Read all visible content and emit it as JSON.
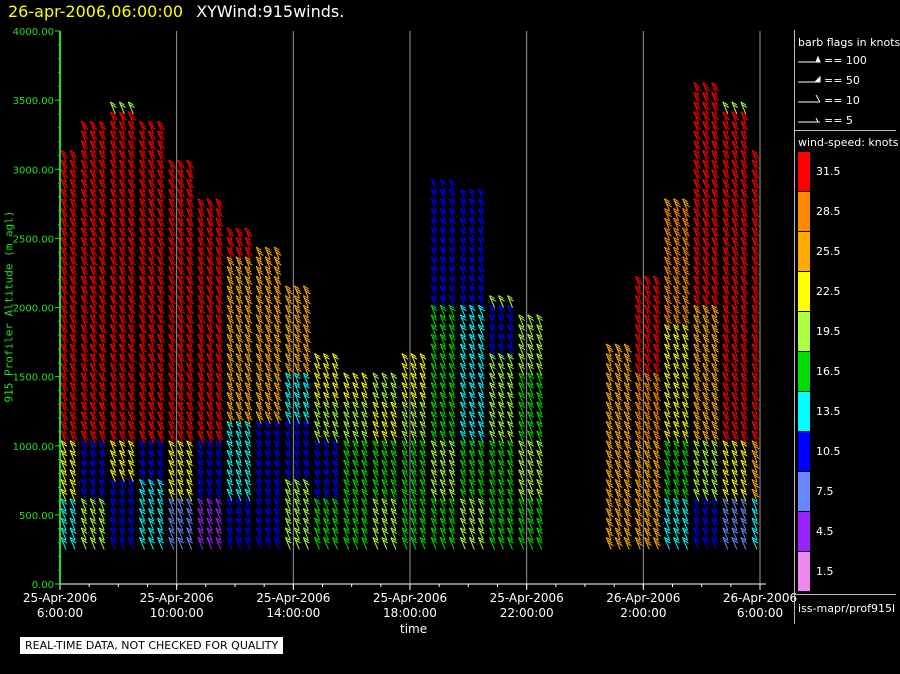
{
  "header": {
    "time": "26-apr-2006,06:00:00",
    "name": "XYWind:915winds."
  },
  "axis": {
    "ylabel": "915 Profiler Altitude (m agl)",
    "xlabel": "time",
    "yticks": [
      "4000.00",
      "3500.00",
      "3000.00",
      "2500.00",
      "2000.00",
      "1500.00",
      "1000.00",
      "500.00",
      "0.00"
    ],
    "xticks": [
      {
        "date": "25-Apr-2006",
        "time": "6:00:00"
      },
      {
        "date": "25-Apr-2006",
        "time": "10:00:00"
      },
      {
        "date": "25-Apr-2006",
        "time": "14:00:00"
      },
      {
        "date": "25-Apr-2006",
        "time": "18:00:00"
      },
      {
        "date": "25-Apr-2006",
        "time": "22:00:00"
      },
      {
        "date": "26-Apr-2006",
        "time": "2:00:00"
      },
      {
        "date": "26-Apr-2006",
        "time": "6:00:00"
      }
    ]
  },
  "legend": {
    "barb_title": "barb flags in knots",
    "barb_items": [
      "== 100",
      "== 50",
      "== 10",
      "== 5"
    ],
    "speed_title": "wind-speed: knots",
    "speed_items": [
      {
        "label": "31.5",
        "color": "#ff0000"
      },
      {
        "label": "28.5",
        "color": "#ff8800"
      },
      {
        "label": "25.5",
        "color": "#ffaa00"
      },
      {
        "label": "22.5",
        "color": "#ffff00"
      },
      {
        "label": "19.5",
        "color": "#aaff44"
      },
      {
        "label": "16.5",
        "color": "#00dd00"
      },
      {
        "label": "13.5",
        "color": "#00ffff"
      },
      {
        "label": "10.5",
        "color": "#0000ff"
      },
      {
        "label": "7.5",
        "color": "#6688ff"
      },
      {
        "label": "4.5",
        "color": "#9922ff"
      },
      {
        "label": "1.5",
        "color": "#ee88ee"
      }
    ],
    "source": "iss-mapr/prof915l"
  },
  "notice": "REAL-TIME DATA, NOT CHECKED FOR QUALITY",
  "chart_data": {
    "type": "wind-barb time-height",
    "title": "XYWind:915winds.",
    "xlabel": "time",
    "ylabel": "915 Profiler Altitude (m agl)",
    "ylim": [
      0,
      4000
    ],
    "xlim": [
      "25-Apr-2006 6:00:00",
      "26-Apr-2006 6:00:00"
    ],
    "grid": "vertical lines at 4-hour ticks",
    "profiles": [
      {
        "t": "25-Apr-2006 6:00",
        "top": 3100,
        "low": [
          [
            250,
            "#00ffff"
          ],
          [
            600,
            "#ffff00"
          ],
          [
            1000,
            "#ff0000"
          ],
          [
            2600,
            "#ff0000"
          ],
          [
            3100,
            "#ffaa00"
          ]
        ]
      },
      {
        "t": "25-Apr-2006 7:00",
        "top": 3300,
        "low": [
          [
            250,
            "#aaff44"
          ],
          [
            600,
            "#0000ff"
          ],
          [
            1000,
            "#ff0000"
          ],
          [
            2700,
            "#ff0000"
          ],
          [
            3300,
            "#00ffff"
          ]
        ]
      },
      {
        "t": "25-Apr-2006 8:00",
        "top": 3400,
        "low": [
          [
            250,
            "#0000ff"
          ],
          [
            700,
            "#ffff00"
          ],
          [
            1000,
            "#ff0000"
          ],
          [
            2800,
            "#ff0000"
          ],
          [
            3400,
            "#aaff44"
          ]
        ]
      },
      {
        "t": "25-Apr-2006 9:00",
        "top": 3300,
        "low": [
          [
            250,
            "#00ffff"
          ],
          [
            700,
            "#0000ff"
          ],
          [
            1000,
            "#ff0000"
          ],
          [
            2900,
            "#ff0000"
          ],
          [
            3300,
            "#ffff00"
          ]
        ]
      },
      {
        "t": "25-Apr-2006 10:00",
        "top": 3000,
        "low": [
          [
            250,
            "#6688ff"
          ],
          [
            600,
            "#ffff00"
          ],
          [
            1000,
            "#ff0000"
          ],
          [
            2600,
            "#ff0000"
          ],
          [
            3000,
            "#ff0000"
          ]
        ]
      },
      {
        "t": "25-Apr-2006 11:00",
        "top": 2700,
        "low": [
          [
            250,
            "#9922ff"
          ],
          [
            600,
            "#0000ff"
          ],
          [
            1000,
            "#ff0000"
          ],
          [
            2400,
            "#ff0000"
          ],
          [
            2700,
            "#ff0000"
          ]
        ]
      },
      {
        "t": "25-Apr-2006 12:00",
        "top": 2500,
        "low": [
          [
            250,
            "#0000ff"
          ],
          [
            600,
            "#00ffff"
          ],
          [
            1100,
            "#ffaa00"
          ],
          [
            2300,
            "#ff0000"
          ],
          [
            2500,
            "#ff0000"
          ]
        ]
      },
      {
        "t": "25-Apr-2006 13:00",
        "top": 2400,
        "low": [
          [
            250,
            "#0000ff"
          ],
          [
            700,
            "#0000ff"
          ],
          [
            1100,
            "#ffaa00"
          ],
          [
            2000,
            "#ffaa00"
          ],
          [
            2400,
            "#ff0000"
          ]
        ]
      },
      {
        "t": "25-Apr-2006 14:00",
        "top": 2100,
        "low": [
          [
            250,
            "#aaff44"
          ],
          [
            700,
            "#0000ff"
          ],
          [
            1100,
            "#00ffff"
          ],
          [
            1500,
            "#ffaa00"
          ],
          [
            2100,
            "#ffff00"
          ]
        ]
      },
      {
        "t": "25-Apr-2006 15:00",
        "top": 1600,
        "low": [
          [
            250,
            "#00dd00"
          ],
          [
            600,
            "#0000ff"
          ],
          [
            1000,
            "#aaff44"
          ],
          [
            1300,
            "#ffff00"
          ],
          [
            1600,
            "#ffff00"
          ]
        ]
      },
      {
        "t": "25-Apr-2006 16:00",
        "top": 1500,
        "low": [
          [
            250,
            "#00dd00"
          ],
          [
            600,
            "#00dd00"
          ],
          [
            1000,
            "#aaff44"
          ],
          [
            1300,
            "#ffff00"
          ],
          [
            1500,
            "#ffff00"
          ]
        ]
      },
      {
        "t": "25-Apr-2006 17:00",
        "top": 1500,
        "low": [
          [
            250,
            "#aaff44"
          ],
          [
            600,
            "#00dd00"
          ],
          [
            1000,
            "#ffff00"
          ],
          [
            1300,
            "#aaff44"
          ],
          [
            1500,
            "#ffff00"
          ]
        ]
      },
      {
        "t": "25-Apr-2006 18:00",
        "top": 1600,
        "low": [
          [
            250,
            "#00dd00"
          ],
          [
            600,
            "#00dd00"
          ],
          [
            1000,
            "#aaff44"
          ],
          [
            1300,
            "#ffff00"
          ],
          [
            1600,
            "#6688ff"
          ]
        ]
      },
      {
        "t": "25-Apr-2006 19:00",
        "top": 2900,
        "low": [
          [
            250,
            "#00dd00"
          ],
          [
            600,
            "#aaff44"
          ],
          [
            1000,
            "#00dd00"
          ],
          [
            2000,
            "#0000ff"
          ],
          [
            2900,
            "#00ffff"
          ]
        ]
      },
      {
        "t": "25-Apr-2006 20:00",
        "top": 2800,
        "low": [
          [
            250,
            "#aaff44"
          ],
          [
            600,
            "#00dd00"
          ],
          [
            1000,
            "#00ffff"
          ],
          [
            2000,
            "#0000ff"
          ],
          [
            2800,
            "#00dd00"
          ]
        ]
      },
      {
        "t": "25-Apr-2006 21:00",
        "top": 2000,
        "low": [
          [
            250,
            "#00dd00"
          ],
          [
            600,
            "#00dd00"
          ],
          [
            1000,
            "#aaff44"
          ],
          [
            1600,
            "#0000ff"
          ],
          [
            2000,
            "#aaff44"
          ]
        ]
      },
      {
        "t": "25-Apr-2006 22:00",
        "top": 1900,
        "low": [
          [
            250,
            "#00dd00"
          ],
          [
            600,
            "#aaff44"
          ],
          [
            1000,
            "#00dd00"
          ],
          [
            1500,
            "#aaff44"
          ],
          [
            1900,
            "#ffff00"
          ]
        ]
      },
      {
        "t": "26-Apr-2006 1:00",
        "top": 1700,
        "low": [
          [
            250,
            "#ffaa00"
          ],
          [
            600,
            "#ffaa00"
          ],
          [
            1000,
            "#ffaa00"
          ],
          [
            1400,
            "#ffaa00"
          ],
          [
            1700,
            "#ff8800"
          ]
        ]
      },
      {
        "t": "26-Apr-2006 2:00",
        "top": 2200,
        "low": [
          [
            250,
            "#ffaa00"
          ],
          [
            600,
            "#ffaa00"
          ],
          [
            1000,
            "#ff8800"
          ],
          [
            1500,
            "#ff0000"
          ],
          [
            2200,
            "#ff8800"
          ]
        ]
      },
      {
        "t": "26-Apr-2006 3:00",
        "top": 2700,
        "low": [
          [
            250,
            "#00ffff"
          ],
          [
            600,
            "#00dd00"
          ],
          [
            1000,
            "#ffff00"
          ],
          [
            1800,
            "#ff8800"
          ],
          [
            2700,
            "#ffaa00"
          ]
        ]
      },
      {
        "t": "26-Apr-2006 4:00",
        "top": 3600,
        "low": [
          [
            250,
            "#0000ff"
          ],
          [
            600,
            "#aaff44"
          ],
          [
            1000,
            "#ffaa00"
          ],
          [
            2000,
            "#ff0000"
          ],
          [
            3600,
            "#ff8800"
          ]
        ]
      },
      {
        "t": "26-Apr-2006 5:00",
        "top": 3400,
        "low": [
          [
            250,
            "#6688ff"
          ],
          [
            600,
            "#ffff00"
          ],
          [
            1000,
            "#ff0000"
          ],
          [
            2400,
            "#ff0000"
          ],
          [
            3400,
            "#aaff44"
          ]
        ]
      },
      {
        "t": "26-Apr-2006 6:00",
        "top": 3100,
        "low": [
          [
            250,
            "#00ffff"
          ],
          [
            600,
            "#ffaa00"
          ],
          [
            1000,
            "#ff0000"
          ],
          [
            2500,
            "#ff0000"
          ],
          [
            3100,
            "#ff8800"
          ]
        ]
      }
    ]
  }
}
